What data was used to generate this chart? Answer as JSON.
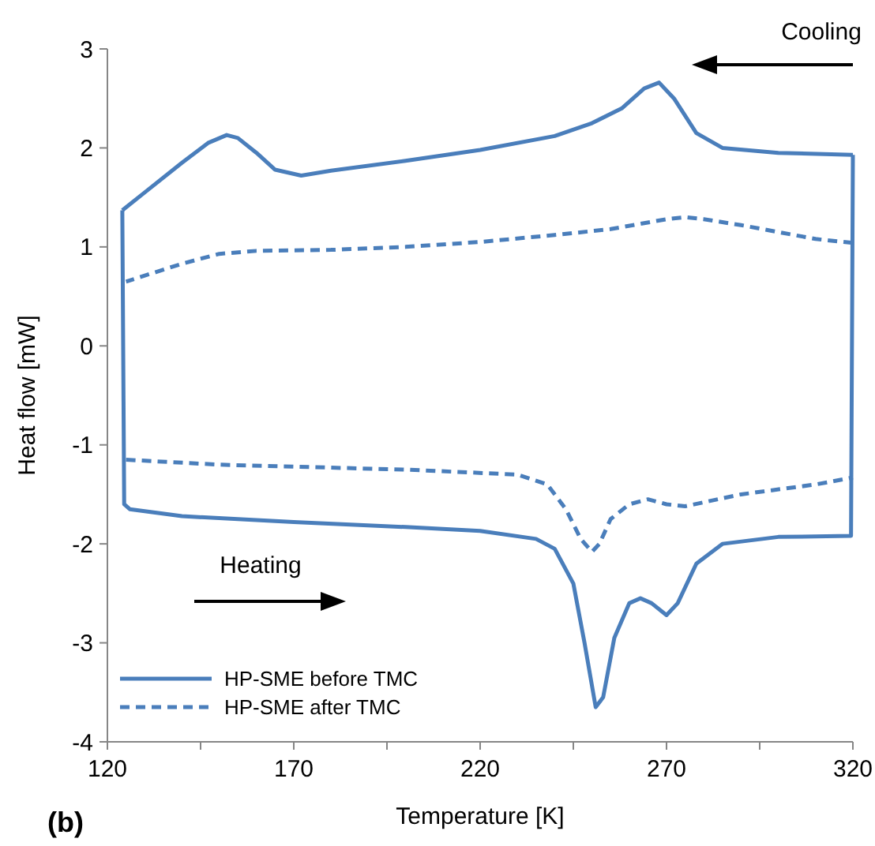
{
  "chart_data": {
    "type": "line",
    "xlabel": "Temperature  [K]",
    "ylabel": "Heat flow [mW]",
    "xlim": [
      120,
      320
    ],
    "ylim": [
      -4,
      3
    ],
    "xticks": [
      120,
      {
        "value": 145,
        "label": null
      },
      170,
      {
        "value": 195,
        "label": null
      },
      220,
      {
        "value": 245,
        "label": null
      },
      270,
      {
        "value": 295,
        "label": null
      },
      320
    ],
    "yticks": [
      -4,
      -3,
      -2,
      -1,
      0,
      1,
      2,
      3
    ],
    "grid": false,
    "legend": "bottom left",
    "annotations": [
      "Cooling",
      "Heating",
      "(b)"
    ],
    "series": [
      {
        "name": "HP-SME before TMC",
        "color": "#4a7ebb",
        "line_style": "solid",
        "x": [
          320,
          300,
          285,
          278,
          272,
          268,
          264,
          258,
          250,
          240,
          220,
          200,
          180,
          172,
          165,
          160,
          155,
          152,
          147,
          140,
          130,
          124
        ],
        "values": [
          1.93,
          1.95,
          2.0,
          2.15,
          2.5,
          2.66,
          2.6,
          2.4,
          2.25,
          2.12,
          1.98,
          1.87,
          1.77,
          1.72,
          1.78,
          1.95,
          2.1,
          2.13,
          2.05,
          1.85,
          1.55,
          1.37
        ]
      },
      {
        "color": "#4a7ebb",
        "line_style": "solid",
        "x": [
          124,
          124.5,
          126,
          140,
          170,
          200,
          220,
          235,
          240,
          245,
          248,
          251,
          253,
          256,
          260,
          263,
          266,
          270,
          273,
          278,
          285,
          300,
          319.5,
          320
        ],
        "values": [
          1.37,
          -1.6,
          -1.65,
          -1.72,
          -1.78,
          -1.83,
          -1.87,
          -1.95,
          -2.05,
          -2.4,
          -3.0,
          -3.65,
          -3.55,
          -2.95,
          -2.6,
          -2.55,
          -2.6,
          -2.72,
          -2.6,
          -2.2,
          -2.0,
          -1.93,
          -1.92,
          1.93
        ]
      },
      {
        "name": "HP-SME after TMC",
        "color": "#4a7ebb",
        "line_style": "dashed",
        "x": [
          320,
          310,
          300,
          290,
          280,
          275,
          270,
          255,
          240,
          220,
          200,
          180,
          160,
          150,
          140,
          125
        ],
        "values": [
          1.04,
          1.08,
          1.15,
          1.22,
          1.28,
          1.3,
          1.28,
          1.18,
          1.12,
          1.05,
          1.0,
          0.97,
          0.96,
          0.93,
          0.83,
          0.65
        ]
      },
      {
        "color": "#4a7ebb",
        "line_style": "dashed",
        "x": [
          125,
          150,
          200,
          230,
          238,
          243,
          247,
          250,
          252,
          255,
          260,
          265,
          270,
          275,
          290,
          310,
          320
        ],
        "values": [
          -1.15,
          -1.2,
          -1.25,
          -1.3,
          -1.4,
          -1.65,
          -1.95,
          -2.08,
          -2.0,
          -1.75,
          -1.6,
          -1.55,
          -1.6,
          -1.62,
          -1.5,
          -1.4,
          -1.33
        ]
      }
    ]
  }
}
